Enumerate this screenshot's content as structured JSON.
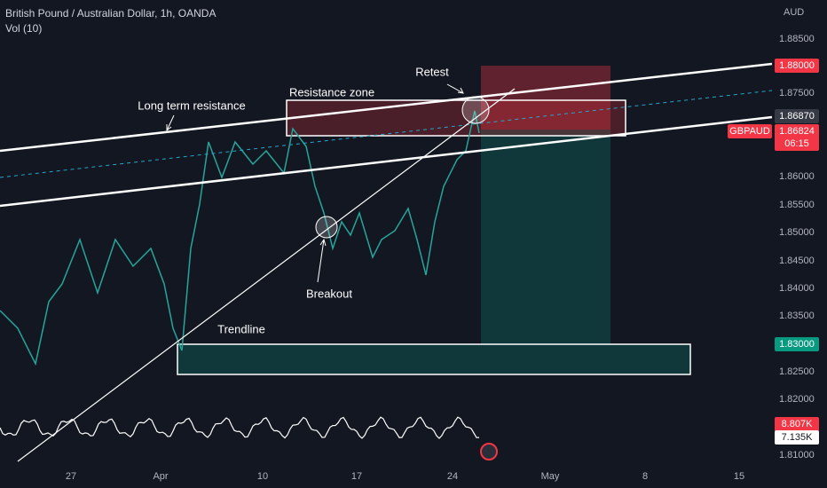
{
  "header": {
    "symbol": "British Pound / Australian Dollar, 1h, OANDA",
    "indicator": "Vol (10)"
  },
  "price_axis": {
    "currency": "AUD",
    "labels": [
      "1.88500",
      "1.87500",
      "1.86000",
      "1.85500",
      "1.85000",
      "1.84500",
      "1.84000",
      "1.83500",
      "1.82500",
      "1.82000",
      "1.81000"
    ]
  },
  "time_axis": {
    "labels": [
      "27",
      "Apr",
      "10",
      "17",
      "24",
      "May",
      "8",
      "15"
    ]
  },
  "tags": {
    "stop": "1.88000",
    "entry": "1.86870",
    "symbol": "GBPAUD",
    "last": "1.86824",
    "countdown": "06:15",
    "target": "1.83000",
    "vol_high": "8.807K",
    "vol_low": "7.135K"
  },
  "annotations": {
    "long_term": "Long term resistance",
    "zone": "Resistance zone",
    "retest": "Retest",
    "trendline": "Trendline",
    "breakout": "Breakout"
  }
}
